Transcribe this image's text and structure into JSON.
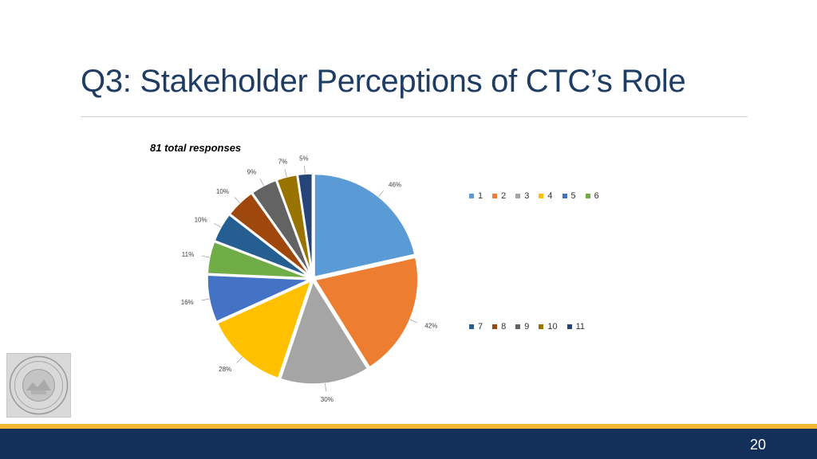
{
  "slide": {
    "title": "Q3: Stakeholder Perceptions of CTC’s Role",
    "page_number": "20"
  },
  "colors": {
    "title": "#1f3c62",
    "footer": "#13305a",
    "accent_band": "#f2b632"
  },
  "chart_data": {
    "type": "pie",
    "title": "81 total responses",
    "categories": [
      "1",
      "2",
      "3",
      "4",
      "5",
      "6",
      "7",
      "8",
      "9",
      "10",
      "11"
    ],
    "values": [
      46,
      42,
      30,
      28,
      16,
      11,
      10,
      10,
      9,
      7,
      5
    ],
    "labels": [
      "46%",
      "42%",
      "30%",
      "28%",
      "16%",
      "11%",
      "10%",
      "10%",
      "9%",
      "7%",
      "5%"
    ],
    "colors": [
      "#5b9bd5",
      "#ed7d31",
      "#a5a5a5",
      "#ffc000",
      "#4472c4",
      "#70ad47",
      "#255e91",
      "#9e480e",
      "#636363",
      "#997300",
      "#264478"
    ],
    "legend": {
      "placement": "right",
      "rows": [
        [
          "1",
          "2",
          "3",
          "4",
          "5",
          "6"
        ],
        [
          "7",
          "8",
          "9",
          "10",
          "11"
        ]
      ]
    }
  }
}
